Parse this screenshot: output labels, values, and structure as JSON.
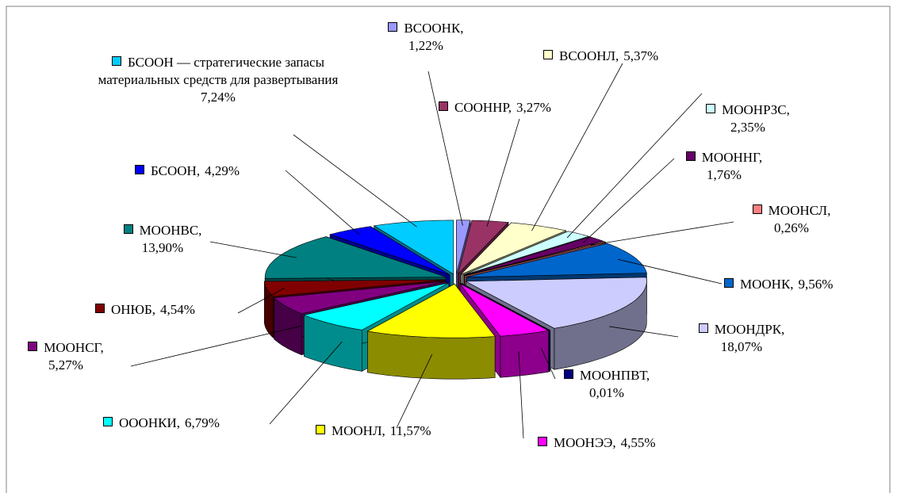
{
  "chart_data": {
    "type": "pie",
    "categories": [
      "ВСООНК,",
      "СООННР,",
      "ВСООНЛ,",
      "МООНРЗС,",
      "МООННГ,",
      "МООНСЛ,",
      "МООНК,",
      "МООНДРК,",
      "МООНПВТ,",
      "МООНЭЭ,",
      "МООНЛ,",
      "ОООНКИ,",
      "МООНСГ,",
      "ОНЮБ,",
      "МООНВС,",
      "БСООН,",
      "БСООН — стратегические запасы материальных средств для развертывания"
    ],
    "values": [
      1.22,
      3.27,
      5.37,
      2.35,
      1.76,
      0.26,
      9.56,
      18.07,
      0.01,
      4.55,
      11.57,
      6.79,
      5.27,
      4.54,
      13.9,
      4.29,
      7.24
    ],
    "value_labels": [
      "1,22%",
      "3,27%",
      "5,37%",
      "2,35%",
      "1,76%",
      "0,26%",
      "9,56%",
      "18,07%",
      "0,01%",
      "4,55%",
      "11,57%",
      "6,79%",
      "5,27%",
      "4,54%",
      "13,90%",
      "4,29%",
      "7,24%"
    ],
    "colors": [
      "#9999ff",
      "#993366",
      "#ffffcc",
      "#ccffff",
      "#660066",
      "#ff8080",
      "#0066cc",
      "#ccccff",
      "#000080",
      "#ff00ff",
      "#ffff00",
      "#00ffff",
      "#800080",
      "#800000",
      "#008080",
      "#0000ff",
      "#00ccff"
    ]
  }
}
